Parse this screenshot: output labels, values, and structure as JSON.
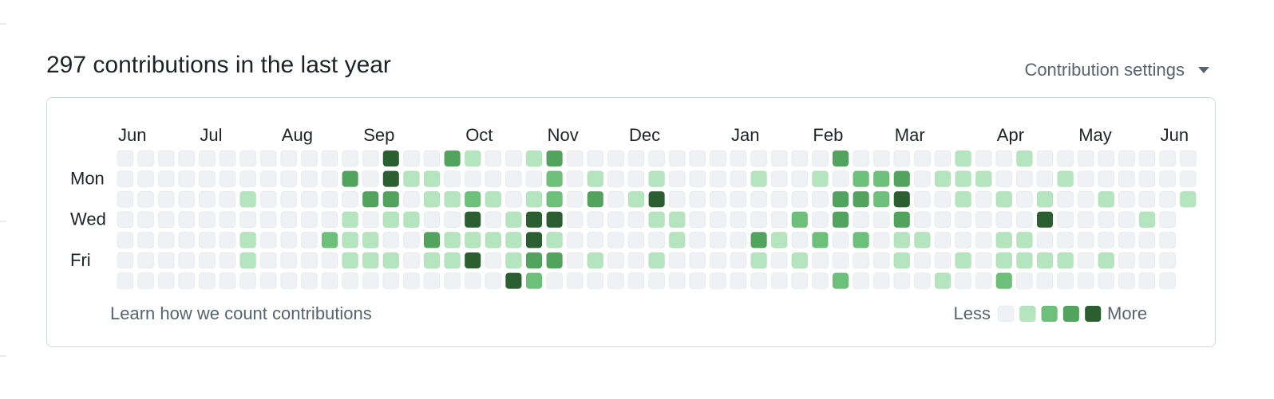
{
  "header": {
    "title": "297 contributions in the last year",
    "settings": "Contribution settings"
  },
  "calendar": {
    "months": [
      "Jun",
      "Jul",
      "Aug",
      "Sep",
      "Oct",
      "Nov",
      "Dec",
      "Jan",
      "Feb",
      "Mar",
      "Apr",
      "May",
      "Jun"
    ],
    "days": [
      "Mon",
      "Wed",
      "Fri"
    ],
    "level_colors": [
      "#eff1f4",
      "#b5e5be",
      "#6cc07a",
      "#52a35e",
      "#2b5f31"
    ],
    "rows": [
      [
        0,
        0,
        0,
        0,
        0,
        0,
        0,
        0,
        0,
        0,
        0,
        0,
        0,
        4,
        0,
        0,
        3,
        1,
        0,
        0,
        1,
        3,
        0,
        0,
        0,
        0,
        0,
        0,
        0,
        0,
        0,
        0,
        0,
        0,
        0,
        3,
        0,
        0,
        0,
        0,
        0,
        1,
        0,
        0,
        1,
        0,
        0,
        0,
        0,
        0,
        0,
        0,
        0
      ],
      [
        0,
        0,
        0,
        0,
        0,
        0,
        0,
        0,
        0,
        0,
        0,
        3,
        0,
        4,
        1,
        1,
        0,
        0,
        0,
        0,
        0,
        2,
        0,
        1,
        0,
        0,
        1,
        0,
        0,
        0,
        0,
        1,
        0,
        0,
        1,
        0,
        2,
        2,
        3,
        0,
        1,
        1,
        1,
        0,
        0,
        0,
        1,
        0,
        0,
        0,
        0,
        0,
        0
      ],
      [
        0,
        0,
        0,
        0,
        0,
        0,
        1,
        0,
        0,
        0,
        0,
        0,
        3,
        3,
        0,
        1,
        1,
        2,
        1,
        0,
        1,
        2,
        0,
        3,
        0,
        1,
        4,
        0,
        0,
        0,
        0,
        0,
        0,
        0,
        0,
        3,
        3,
        2,
        4,
        0,
        0,
        1,
        0,
        1,
        0,
        1,
        0,
        0,
        1,
        0,
        0,
        0,
        1
      ],
      [
        0,
        0,
        0,
        0,
        0,
        0,
        0,
        0,
        0,
        0,
        0,
        1,
        0,
        1,
        1,
        0,
        0,
        4,
        0,
        1,
        4,
        4,
        0,
        0,
        0,
        0,
        1,
        1,
        0,
        0,
        0,
        0,
        0,
        2,
        0,
        3,
        0,
        0,
        3,
        0,
        0,
        0,
        0,
        0,
        0,
        4,
        0,
        0,
        0,
        0,
        1,
        0
      ],
      [
        0,
        0,
        0,
        0,
        0,
        0,
        1,
        0,
        0,
        0,
        2,
        1,
        1,
        0,
        0,
        3,
        1,
        1,
        1,
        1,
        4,
        1,
        0,
        0,
        0,
        0,
        0,
        1,
        0,
        0,
        0,
        3,
        1,
        0,
        2,
        0,
        2,
        0,
        1,
        1,
        0,
        0,
        0,
        1,
        1,
        0,
        0,
        0,
        0,
        0,
        0,
        0
      ],
      [
        0,
        0,
        0,
        0,
        0,
        0,
        1,
        0,
        0,
        0,
        0,
        1,
        1,
        1,
        0,
        1,
        1,
        4,
        0,
        1,
        3,
        3,
        0,
        1,
        0,
        0,
        1,
        0,
        0,
        0,
        0,
        1,
        0,
        1,
        0,
        0,
        0,
        0,
        1,
        0,
        0,
        1,
        0,
        1,
        1,
        1,
        1,
        0,
        1,
        0,
        0,
        0
      ],
      [
        0,
        0,
        0,
        0,
        0,
        0,
        0,
        0,
        0,
        0,
        0,
        0,
        0,
        0,
        0,
        0,
        0,
        0,
        0,
        4,
        2,
        0,
        0,
        0,
        0,
        0,
        0,
        0,
        0,
        0,
        0,
        0,
        0,
        0,
        0,
        2,
        0,
        0,
        0,
        0,
        1,
        0,
        0,
        2,
        0,
        0,
        0,
        0,
        0,
        0,
        0,
        0
      ]
    ],
    "footer": {
      "learn": "Learn how we count contributions",
      "less": "Less",
      "more": "More"
    }
  }
}
